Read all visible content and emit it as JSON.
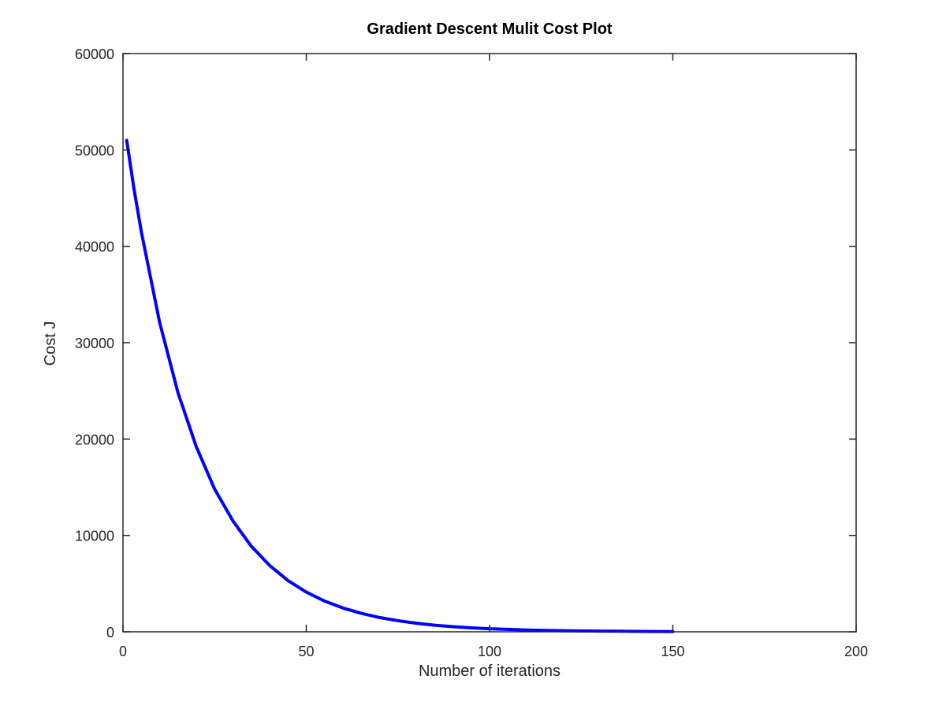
{
  "chart_data": {
    "type": "line",
    "title": "Gradient Descent Mulit Cost Plot",
    "xlabel": "Number of iterations",
    "ylabel": "Cost J",
    "xlim": [
      0,
      200
    ],
    "ylim": [
      0,
      60000
    ],
    "xticks": [
      0,
      50,
      100,
      150,
      200
    ],
    "yticks": [
      0,
      10000,
      20000,
      30000,
      40000,
      50000,
      60000
    ],
    "grid": false,
    "series": [
      {
        "color": "#0000ff",
        "x": [
          1,
          3,
          5,
          10,
          15,
          20,
          25,
          30,
          35,
          40,
          45,
          50,
          55,
          60,
          65,
          70,
          75,
          80,
          85,
          90,
          95,
          100,
          105,
          110,
          115,
          120,
          125,
          130,
          135,
          140,
          145,
          150
        ],
        "y": [
          51000,
          46000,
          41500,
          32100,
          24800,
          19200,
          14800,
          11500,
          8880,
          6880,
          5320,
          4120,
          3190,
          2470,
          1910,
          1480,
          1150,
          890,
          690,
          530,
          410,
          320,
          250,
          190,
          150,
          115,
          90,
          70,
          55,
          42,
          33,
          25
        ]
      }
    ]
  }
}
